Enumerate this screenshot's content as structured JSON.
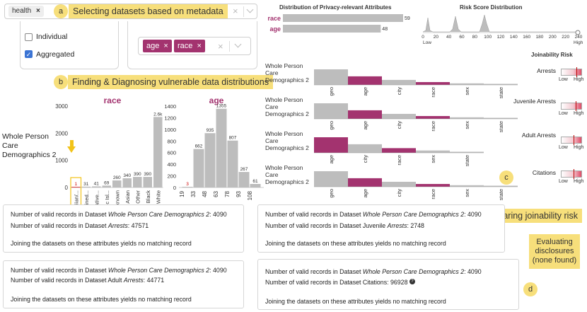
{
  "annotations": {
    "a": "a",
    "a_text": "Selecting datasets based on metadata",
    "b": "b",
    "b_text": "Finding & Diagnosing vulnerable data distributions",
    "c": "c",
    "c_text": "Comparing joinability risk",
    "d": "d",
    "d_text_line1": "Evaluating",
    "d_text_line2": "disclosures",
    "d_text_line3": "(none found)"
  },
  "search": {
    "tag": "health",
    "tag_remove": "×",
    "clear": "×"
  },
  "metadata_filter": {
    "options": [
      {
        "label": "Individual",
        "checked": false
      },
      {
        "label": "Aggregated",
        "checked": true
      }
    ]
  },
  "attribute_select": {
    "chips": [
      {
        "label": "age",
        "remove": "×"
      },
      {
        "label": "race",
        "remove": "×"
      }
    ],
    "clear": "×"
  },
  "dataset_label_left": [
    "Whole Person",
    "Care",
    "Demographics 2"
  ],
  "race_chart": {
    "title": "race",
    "chart_data": {
      "type": "bar",
      "categories": [
        "Hawaiian/...",
        "Declined...",
        "Native...",
        "Pacific Isl...",
        "Unknown",
        "Asian",
        "Other",
        "Black",
        "White"
      ],
      "values": [
        1,
        31,
        41,
        69,
        260,
        340,
        390,
        390,
        2600
      ],
      "value_labels": [
        "1",
        "31",
        "41",
        "69",
        "260",
        "340",
        "390",
        "390",
        "2.6k"
      ],
      "y_ticks": [
        "0",
        "1000",
        "2000",
        "3000"
      ],
      "ylim": [
        0,
        3000
      ],
      "highlight_index": 0
    }
  },
  "age_chart": {
    "title": "age",
    "chart_data": {
      "type": "bar",
      "categories": [
        "19",
        "33",
        "48",
        "63",
        "78",
        "93",
        "108"
      ],
      "values": [
        3,
        662,
        935,
        1355,
        807,
        267,
        61
      ],
      "value_labels": [
        "3",
        "662",
        "935",
        "1355",
        "807",
        "267",
        "61"
      ],
      "y_ticks": [
        "0",
        "200",
        "400",
        "600",
        "800",
        "1000",
        "1200",
        "1400"
      ],
      "ylim": [
        0,
        1400
      ]
    }
  },
  "privacy_dist": {
    "title": "Distribution of Privacy-relevant Attributes",
    "chart_data": {
      "type": "bar",
      "categories": [
        "race",
        "age"
      ],
      "values": [
        59,
        48
      ],
      "max": 59
    }
  },
  "risk_dist": {
    "title": "Risk Score Distribution",
    "ticks": [
      "0",
      "20",
      "40",
      "60",
      "80",
      "100",
      "120",
      "140",
      "160",
      "180",
      "200",
      "220",
      "240"
    ],
    "low": "Low",
    "high": "High"
  },
  "joinability": {
    "title": "Joinability Risk",
    "low": "Low",
    "high": "High",
    "rows": [
      {
        "label": "Arrests",
        "risk": 0.72,
        "attrs": [
          "geo",
          "age",
          "city",
          "race",
          "sex",
          "state"
        ],
        "heights": [
          1.0,
          0.55,
          0.32,
          0.18,
          0.1,
          0.05
        ],
        "colors": [
          "gray",
          "purple",
          "gray",
          "purple",
          "gray",
          "gray"
        ]
      },
      {
        "label": "Juvenile Arrests",
        "risk": 0.7,
        "attrs": [
          "geo",
          "age",
          "city",
          "race",
          "sex",
          "state"
        ],
        "heights": [
          1.0,
          0.55,
          0.32,
          0.18,
          0.1,
          0.05
        ],
        "colors": [
          "gray",
          "purple",
          "gray",
          "purple",
          "gray",
          "gray"
        ]
      },
      {
        "label": "Adult Arrests",
        "risk": 0.6,
        "attrs": [
          "age",
          "city",
          "race",
          "sex",
          "state"
        ],
        "heights": [
          1.0,
          0.55,
          0.3,
          0.15,
          0.05
        ],
        "colors": [
          "purple",
          "gray",
          "purple",
          "gray",
          "gray"
        ]
      },
      {
        "label": "Citations",
        "risk": 0.6,
        "attrs": [
          "geo",
          "age",
          "city",
          "race",
          "sex",
          "state"
        ],
        "heights": [
          1.0,
          0.55,
          0.32,
          0.18,
          0.1,
          0.05
        ],
        "colors": [
          "gray",
          "purple",
          "gray",
          "purple",
          "gray",
          "gray"
        ]
      }
    ]
  },
  "disclosures": [
    {
      "line1_prefix": "Number of valid records in Dataset ",
      "line1_name": "Whole Person Care Demographics 2",
      "line1_suffix": ": 4090",
      "line2_prefix": "Number of valid records in Dataset ",
      "line2_name": "Arrests",
      "line2_suffix": ": 47571",
      "result": "Joining the datasets on these attributes yields no matching record"
    },
    {
      "line1_prefix": "Number of valid records in Dataset ",
      "line1_name": "Whole Person Care Demographics 2",
      "line1_suffix": ": 4090",
      "line2_prefix": "Number of valid records in Dataset Juvenile ",
      "line2_name": "Arrests",
      "line2_suffix": ": 2748",
      "result": "Joining the datasets on these attributes yields no matching record"
    },
    {
      "line1_prefix": "Number of valid records in Dataset ",
      "line1_name": "Whole Person Care Demographics 2",
      "line1_suffix": ": 4090",
      "line2_prefix": "Number of valid records in Dataset Adult ",
      "line2_name": "Arrests",
      "line2_suffix": ": 44771",
      "result": "Joining the datasets on these attributes yields no matching record"
    },
    {
      "line1_prefix": "Number of valid records in Dataset ",
      "line1_name": "Whole Person Care Demographics 2",
      "line1_suffix": ": 4090",
      "line2_prefix": "Number of valid records in Dataset Citations: ",
      "line2_name": "",
      "line2_suffix": "96928",
      "result": "Joining the datasets on these attributes yields no matching record"
    }
  ],
  "colors": {
    "purple": "#a3336f",
    "gray": "#bdbdbd",
    "yellow": "#f7df7b"
  }
}
